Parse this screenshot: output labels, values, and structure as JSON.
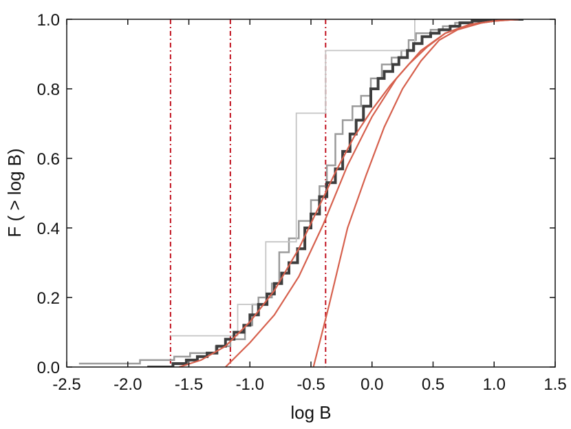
{
  "chart_data": {
    "type": "line",
    "xlabel": "log B",
    "ylabel": "F ( > log B)",
    "xlim": [
      -2.5,
      1.5
    ],
    "ylim": [
      0.0,
      1.0
    ],
    "xticks": [
      "-2.5",
      "-2.0",
      "-1.5",
      "-1.0",
      "-0.5",
      "0.0",
      "0.5",
      "1.0",
      "1.5"
    ],
    "yticks": [
      "0.0",
      "0.2",
      "0.4",
      "0.6",
      "0.8",
      "1.0"
    ],
    "grid": false,
    "vertical_lines": {
      "x": [
        -1.65,
        -1.16,
        -0.38
      ],
      "style": "dash-dot",
      "color": "#c1121f"
    },
    "series": [
      {
        "style": "step",
        "color": "#9a9a9a",
        "width": 2.5,
        "x": [
          -2.4,
          -1.9,
          -1.62,
          -1.49,
          -1.28,
          -1.16,
          -1.04,
          -0.98,
          -0.93,
          -0.82,
          -0.76,
          -0.68,
          -0.6,
          -0.5,
          -0.43,
          -0.37,
          -0.3,
          -0.24,
          -0.16,
          -0.09,
          -0.01,
          0.08,
          0.16,
          0.24,
          0.3,
          0.36,
          0.48,
          0.58,
          0.68,
          0.82,
          1.05,
          1.22
        ],
        "y": [
          0.01,
          0.02,
          0.03,
          0.04,
          0.06,
          0.08,
          0.12,
          0.18,
          0.2,
          0.24,
          0.33,
          0.37,
          0.42,
          0.48,
          0.52,
          0.58,
          0.67,
          0.71,
          0.75,
          0.78,
          0.83,
          0.87,
          0.89,
          0.91,
          0.94,
          0.96,
          0.97,
          0.98,
          0.99,
          1.0,
          1.0,
          1.0
        ]
      },
      {
        "style": "step",
        "color": "#c4c4c4",
        "width": 1.8,
        "x": [
          -1.65,
          -1.1,
          -1.03,
          -0.87,
          -0.76,
          -0.62,
          -0.47,
          -0.38,
          0.35
        ],
        "y": [
          0.09,
          0.18,
          0.18,
          0.36,
          0.36,
          0.73,
          0.73,
          0.91,
          1.0
        ]
      },
      {
        "style": "step",
        "color": "#3d3d3d",
        "width": 4,
        "x": [
          -1.84,
          -1.63,
          -1.52,
          -1.43,
          -1.35,
          -1.27,
          -1.2,
          -1.13,
          -1.05,
          -1.0,
          -0.93,
          -0.86,
          -0.8,
          -0.74,
          -0.68,
          -0.61,
          -0.55,
          -0.5,
          -0.43,
          -0.37,
          -0.3,
          -0.24,
          -0.18,
          -0.13,
          -0.07,
          -0.01,
          0.05,
          0.1,
          0.17,
          0.22,
          0.29,
          0.34,
          0.41,
          0.48,
          0.55,
          0.64,
          0.72,
          0.82,
          0.97,
          1.14,
          1.24
        ],
        "y": [
          0.0,
          0.01,
          0.02,
          0.03,
          0.04,
          0.06,
          0.08,
          0.1,
          0.12,
          0.15,
          0.18,
          0.21,
          0.24,
          0.27,
          0.3,
          0.34,
          0.4,
          0.44,
          0.49,
          0.53,
          0.57,
          0.62,
          0.67,
          0.71,
          0.75,
          0.8,
          0.83,
          0.85,
          0.87,
          0.89,
          0.91,
          0.93,
          0.95,
          0.96,
          0.97,
          0.98,
          0.99,
          0.995,
          1.0,
          1.0,
          1.0
        ]
      },
      {
        "style": "line",
        "color": "#d6604d",
        "width": 2.2,
        "x": [
          -1.58,
          -1.4,
          -1.2,
          -1.0,
          -0.8,
          -0.6,
          -0.45,
          -0.3,
          -0.15,
          0.0,
          0.15,
          0.3,
          0.45,
          0.6,
          0.8,
          1.0,
          1.2
        ],
        "y": [
          0.0,
          0.02,
          0.06,
          0.13,
          0.22,
          0.34,
          0.45,
          0.56,
          0.66,
          0.74,
          0.81,
          0.87,
          0.92,
          0.96,
          0.985,
          0.995,
          1.0
        ]
      },
      {
        "style": "line",
        "color": "#d6604d",
        "width": 2.2,
        "x": [
          -1.2,
          -1.0,
          -0.8,
          -0.6,
          -0.4,
          -0.2,
          0.0,
          0.2,
          0.4,
          0.6,
          0.8,
          1.0,
          1.2
        ],
        "y": [
          0.0,
          0.07,
          0.15,
          0.26,
          0.41,
          0.58,
          0.72,
          0.83,
          0.91,
          0.96,
          0.985,
          0.995,
          1.0
        ]
      },
      {
        "style": "line",
        "color": "#d6604d",
        "width": 2.2,
        "x": [
          -0.48,
          -0.35,
          -0.2,
          -0.05,
          0.1,
          0.25,
          0.4,
          0.55,
          0.7,
          0.9,
          1.1
        ],
        "y": [
          0.0,
          0.18,
          0.4,
          0.55,
          0.69,
          0.8,
          0.88,
          0.94,
          0.97,
          0.99,
          1.0
        ]
      }
    ]
  }
}
